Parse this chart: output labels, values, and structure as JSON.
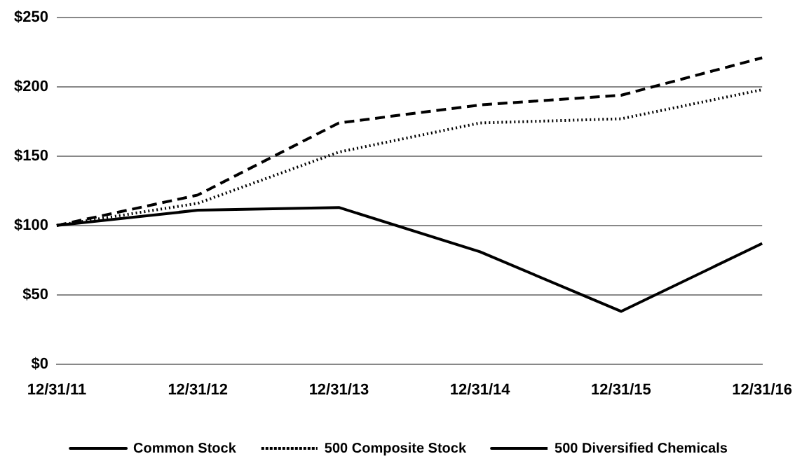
{
  "chart_data": {
    "type": "line",
    "categories": [
      "12/31/11",
      "12/31/12",
      "12/31/13",
      "12/31/14",
      "12/31/15",
      "12/31/16"
    ],
    "series": [
      {
        "name": "Common Stock",
        "color": "#000000",
        "line_style": "solid",
        "values": [
          100,
          111,
          113,
          81,
          38,
          87
        ]
      },
      {
        "name": "500 Composite Stock",
        "color": "#000000",
        "line_style": "dotted",
        "values": [
          100,
          116,
          153,
          174,
          177,
          198
        ]
      },
      {
        "name": "500 Diversified Chemicals",
        "color": "#000000",
        "line_style": "dashed",
        "values": [
          100,
          122,
          174,
          187,
          194,
          221
        ]
      }
    ],
    "ylim": [
      0,
      250
    ],
    "yticks": [
      {
        "value": 0,
        "label": "$0"
      },
      {
        "value": 50,
        "label": "$50"
      },
      {
        "value": 100,
        "label": "$100"
      },
      {
        "value": 150,
        "label": "$150"
      },
      {
        "value": 200,
        "label": "$200"
      },
      {
        "value": 250,
        "label": "$250"
      }
    ],
    "grid": "y",
    "legend": "bottom",
    "marker": "none"
  }
}
